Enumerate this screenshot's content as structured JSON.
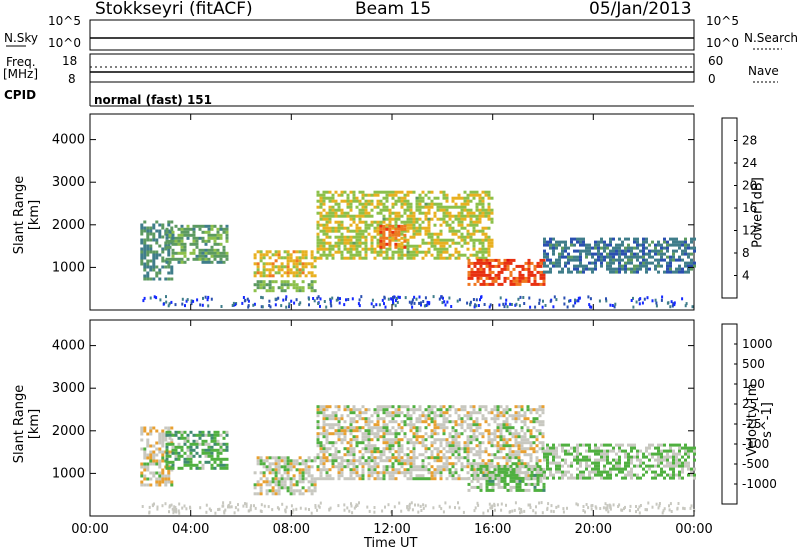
{
  "header": {
    "station": "Stokkseyri (fitACF)",
    "beam": "Beam 15",
    "date": "05/Jan/2013"
  },
  "panels": {
    "nsky_label": "N.Sky",
    "nsky_ticks": [
      "10^5",
      "10^0"
    ],
    "nsearch_label": "N.Search",
    "freq_label_1": "Freq.",
    "freq_label_2": "[MHz]",
    "freq_ticks": [
      "18",
      "8"
    ],
    "nave_ticks": [
      "60",
      "0"
    ],
    "nave_label": "Nave",
    "cpid_label": "CPID",
    "cpid_text": "normal (fast) 151"
  },
  "colors": {
    "power": [
      "#1428ff",
      "#2a4fb0",
      "#3f7d8a",
      "#5c9a60",
      "#8cc04a",
      "#e8b020",
      "#f07820",
      "#e83010",
      "#e01010"
    ],
    "velocity": [
      "#2040c8",
      "#3060b0",
      "#3f8a70",
      "#50b040",
      "#c8c8c0",
      "#e8a030",
      "#f08020",
      "#e84010",
      "#e01010"
    ]
  },
  "chart_data": [
    {
      "type": "heatmap",
      "title": "",
      "ylabel": "Slant Range [km]",
      "xlabel": "",
      "x_ticks": [
        "00:00",
        "04:00",
        "08:00",
        "12:00",
        "16:00",
        "20:00",
        "00:00"
      ],
      "xlim_hours": [
        0,
        24
      ],
      "y_ticks": [
        "1000",
        "2000",
        "3000",
        "4000"
      ],
      "ylim": [
        0,
        4600
      ],
      "colorbar": {
        "label": "Power [dB]",
        "ticks": [
          "4",
          "8",
          "12",
          "16",
          "20",
          "24",
          "28"
        ],
        "range": [
          0,
          30
        ]
      },
      "regions": [
        {
          "t_start": 2.0,
          "t_end": 3.2,
          "r_start": 700,
          "r_end": 2100,
          "value": 10
        },
        {
          "t_start": 3.0,
          "t_end": 5.5,
          "r_start": 1100,
          "r_end": 2000,
          "value": 12
        },
        {
          "t_start": 6.5,
          "t_end": 9.0,
          "r_start": 800,
          "r_end": 1400,
          "value": 18
        },
        {
          "t_start": 6.5,
          "t_end": 9.0,
          "r_start": 450,
          "r_end": 700,
          "value": 14
        },
        {
          "t_start": 9.0,
          "t_end": 16.0,
          "r_start": 1200,
          "r_end": 2800,
          "value": 16
        },
        {
          "t_start": 15.0,
          "t_end": 18.0,
          "r_start": 600,
          "r_end": 1200,
          "value": 24
        },
        {
          "t_start": 11.5,
          "t_end": 12.5,
          "r_start": 1500,
          "r_end": 2000,
          "value": 22
        },
        {
          "t_start": 18.0,
          "t_end": 24.0,
          "r_start": 900,
          "r_end": 1700,
          "value": 8
        }
      ]
    },
    {
      "type": "heatmap",
      "title": "",
      "ylabel": "Slant Range [km]",
      "xlabel": "Time UT",
      "x_ticks": [
        "00:00",
        "04:00",
        "08:00",
        "12:00",
        "16:00",
        "20:00",
        "00:00"
      ],
      "xlim_hours": [
        0,
        24
      ],
      "y_ticks": [
        "1000",
        "2000",
        "3000",
        "4000"
      ],
      "ylim": [
        0,
        4600
      ],
      "colorbar": {
        "label": "Velocity [m s^-1]",
        "ticks": [
          "1000",
          "500",
          "100",
          "25",
          "-25",
          "-100",
          "-500",
          "-1000"
        ],
        "range": [
          -1200,
          1200
        ]
      },
      "regions": [
        {
          "t_start": 2.0,
          "t_end": 3.2,
          "r_start": 700,
          "r_end": 2100,
          "value": 50
        },
        {
          "t_start": 3.0,
          "t_end": 5.5,
          "r_start": 1100,
          "r_end": 2000,
          "value": -300
        },
        {
          "t_start": 6.5,
          "t_end": 9.0,
          "r_start": 500,
          "r_end": 1400,
          "value": 0
        },
        {
          "t_start": 9.0,
          "t_end": 18.0,
          "r_start": 900,
          "r_end": 2600,
          "value": 0
        },
        {
          "t_start": 15.0,
          "t_end": 18.0,
          "r_start": 600,
          "r_end": 1200,
          "value": -200
        },
        {
          "t_start": 18.0,
          "t_end": 24.0,
          "r_start": 900,
          "r_end": 1700,
          "value": -150
        }
      ]
    }
  ]
}
